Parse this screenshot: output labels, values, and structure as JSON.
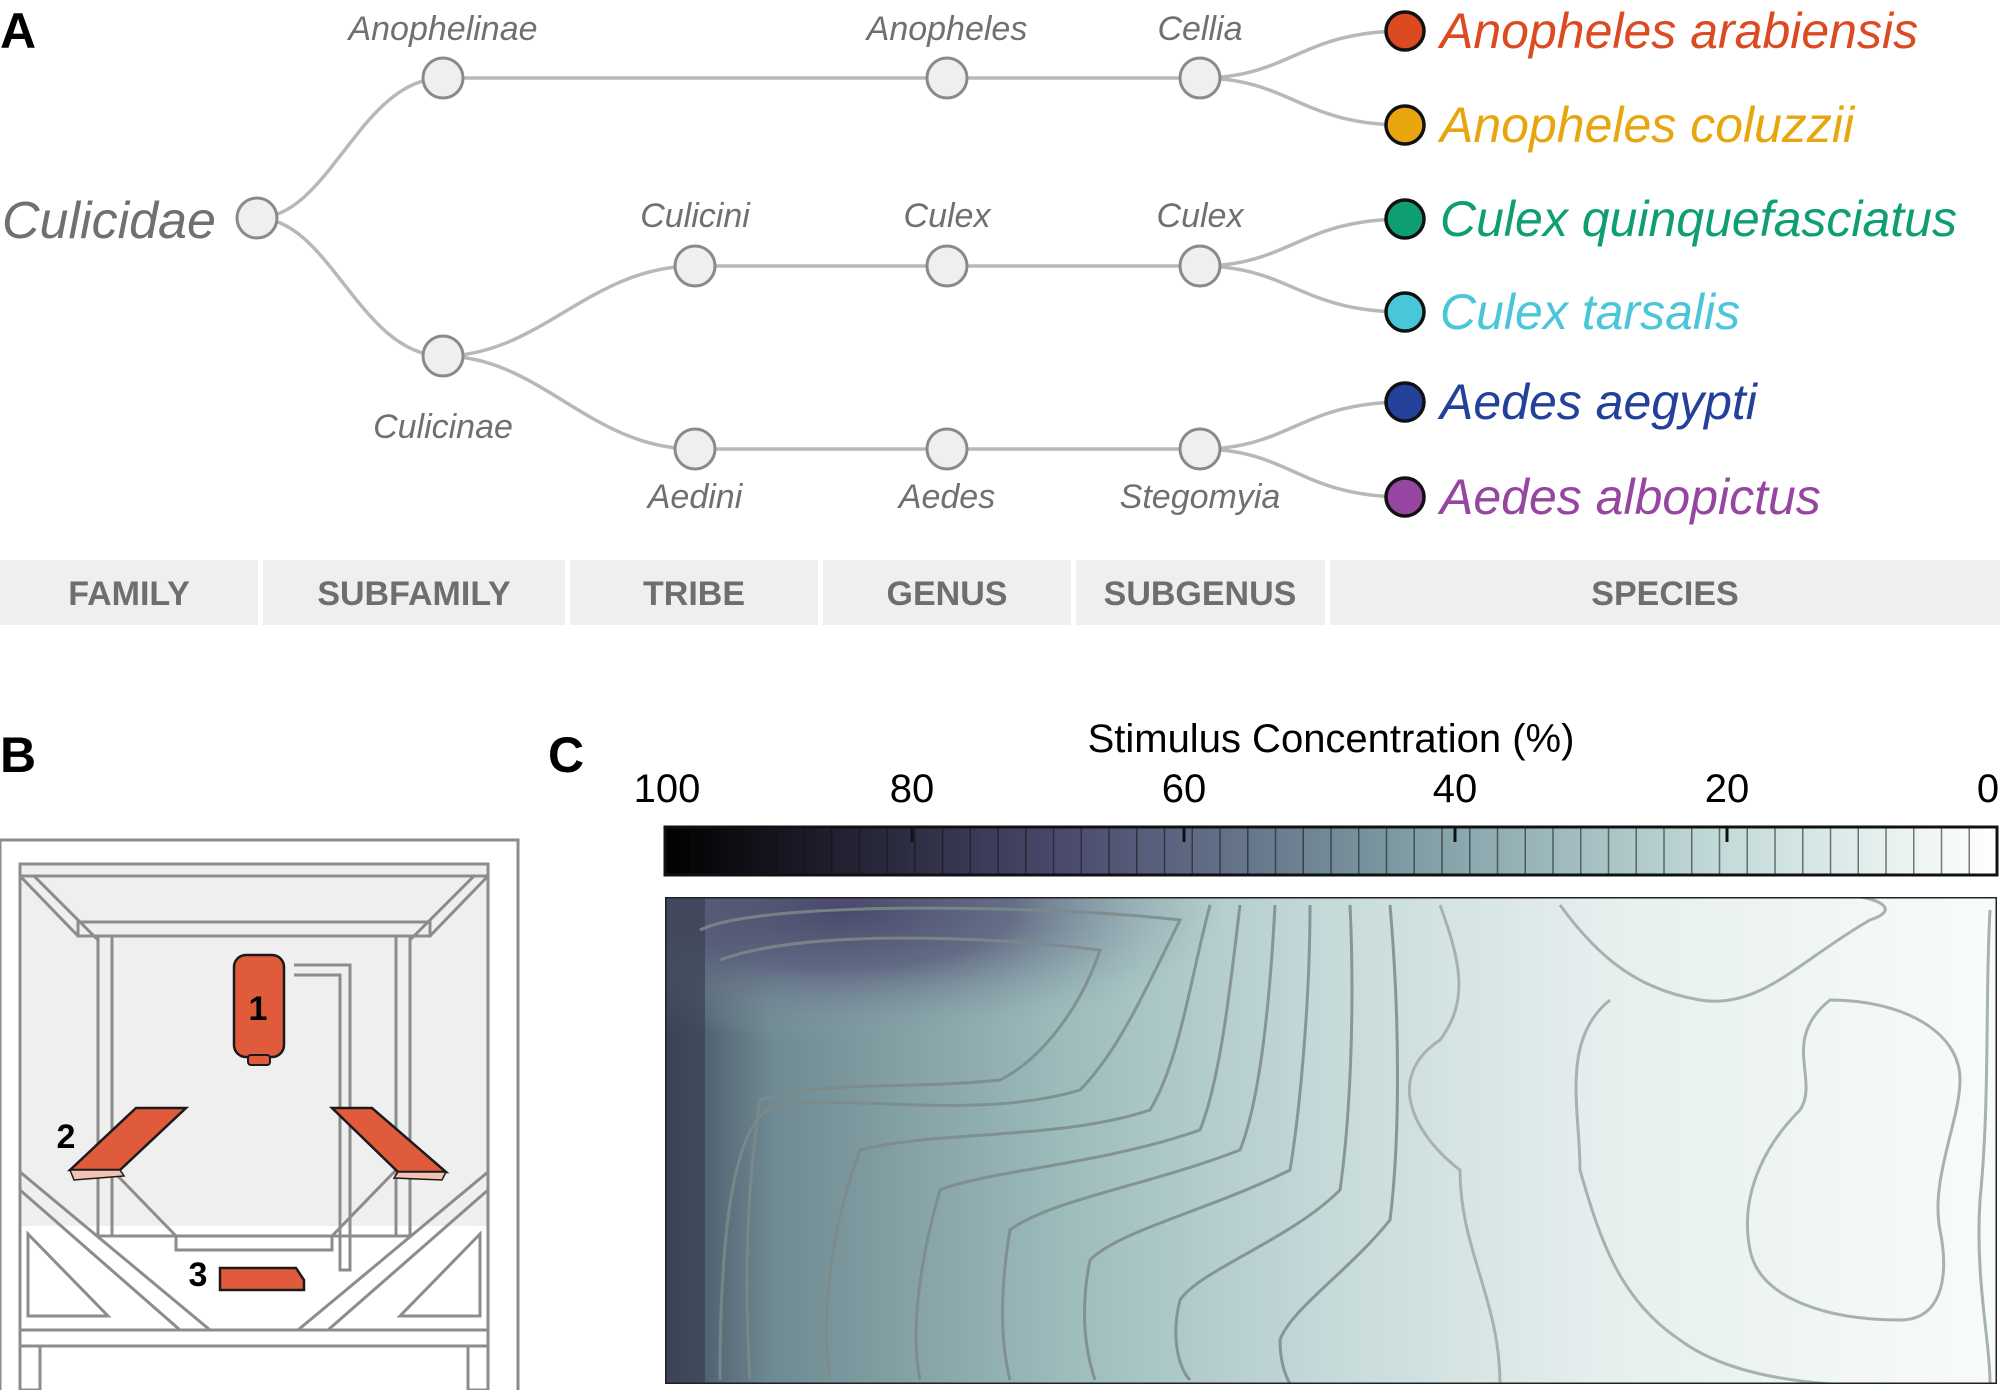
{
  "panels": {
    "a": "A",
    "b": "B",
    "c": "C"
  },
  "taxonomy": {
    "root": "Culicidae",
    "subfamilies": [
      "Anophelinae",
      "Culicinae"
    ],
    "tribes": [
      "Culicini",
      "Aedini"
    ],
    "genera": [
      "Anopheles",
      "Culex",
      "Aedes"
    ],
    "subgenera": [
      "Cellia",
      "Culex",
      "Stegomyia"
    ],
    "species": [
      {
        "name": "Anopheles arabiensis",
        "color": "#dc4a22"
      },
      {
        "name": "Anopheles coluzzii",
        "color": "#e7a50e"
      },
      {
        "name": "Culex quinquefasciatus",
        "color": "#0f9e73"
      },
      {
        "name": "Culex tarsalis",
        "color": "#4ac6d9"
      },
      {
        "name": "Aedes aegypti",
        "color": "#23409a"
      },
      {
        "name": "Aedes albopictus",
        "color": "#9646a0"
      }
    ],
    "ranks": [
      "FAMILY",
      "SUBFAMILY",
      "TRIBE",
      "GENUS",
      "SUBGENUS",
      "SPECIES"
    ]
  },
  "arena": {
    "device_labels": [
      "1",
      "2",
      "3"
    ],
    "device_color": "#e05a3c"
  },
  "colorbar": {
    "title": "Stimulus Concentration (%)",
    "ticks": [
      "100",
      "80",
      "60",
      "40",
      "20",
      "0"
    ],
    "range": [
      100,
      0
    ],
    "dark_color": "#000000",
    "mid_color": "#4b4a6e",
    "light_color": "#ffffff"
  }
}
